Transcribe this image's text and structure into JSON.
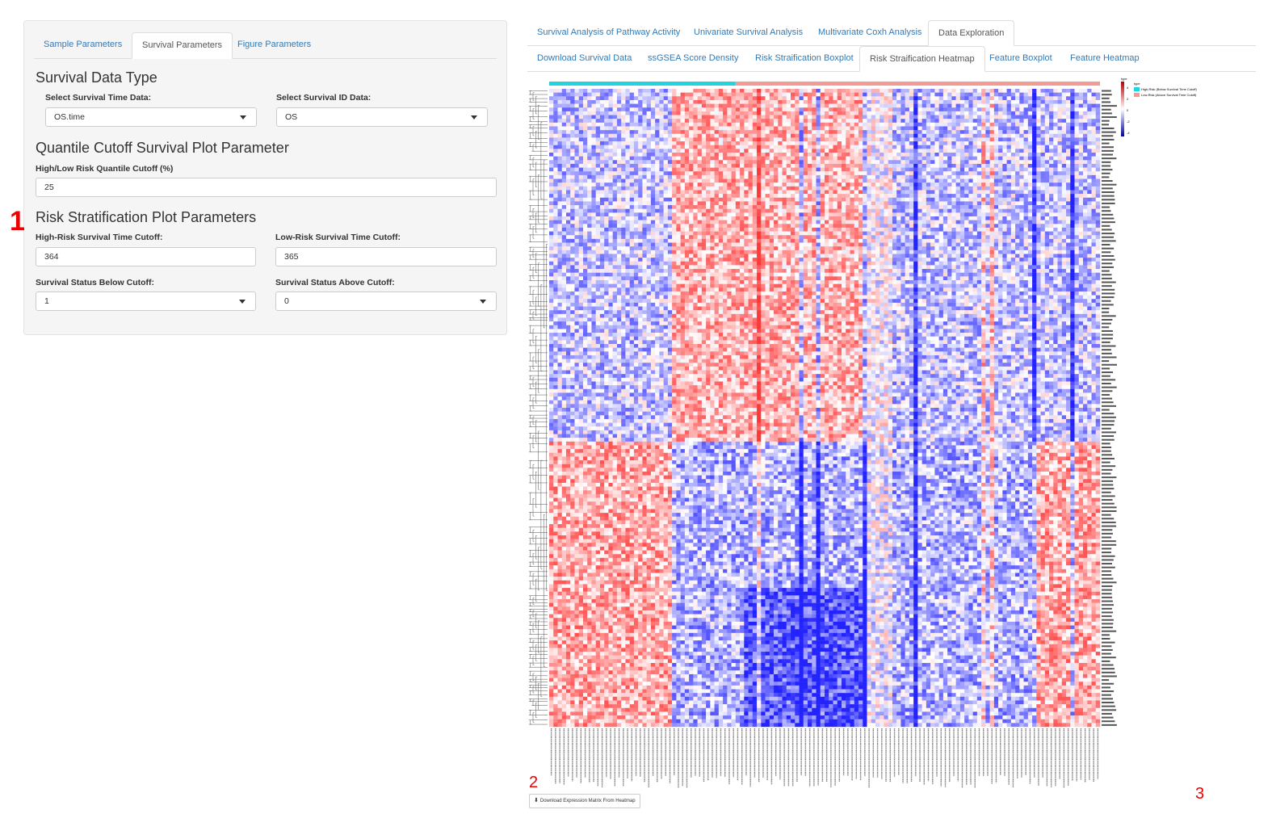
{
  "left_tabs": [
    "Sample Parameters",
    "Survival Parameters",
    "Figure Parameters"
  ],
  "sections": {
    "survival_data_type": "Survival Data Type",
    "quantile_cutoff": "Quantile Cutoff Survival Plot Parameter",
    "risk_stratification": "Risk Stratification Plot Parameters"
  },
  "fields": {
    "survival_time": {
      "label": "Select Survival Time Data:",
      "value": "OS.time"
    },
    "survival_id": {
      "label": "Select Survival ID Data:",
      "value": "OS"
    },
    "quantile_cutoff": {
      "label": "High/Low Risk Quantile Cutoff (%)",
      "value": "25"
    },
    "high_risk_cutoff": {
      "label": "High-Risk Survival Time Cutoff:",
      "value": "364"
    },
    "low_risk_cutoff": {
      "label": "Low-Risk Survival Time Cutoff:",
      "value": "365"
    },
    "status_below": {
      "label": "Survival Status Below Cutoff:",
      "value": "1"
    },
    "status_above": {
      "label": "Survival Status Above Cutoff:",
      "value": "0"
    }
  },
  "main_tabs": [
    "Survival Analysis of Pathway Activity",
    "Univariate Survival Analysis",
    "Multivariate Coxh Analysis",
    "Data Exploration"
  ],
  "sub_tabs": [
    "Download Survival Data",
    "ssGSEA Score Density",
    "Risk Straification Boxplot",
    "Risk Straification Heatmap",
    "Feature Boxplot",
    "Feature Heatmap"
  ],
  "heatmap": {
    "legend_title": "type",
    "legend_items": [
      {
        "label": "High-Risk (Below Survival Time Cutoff)",
        "color": "#22d3e0"
      },
      {
        "label": "Low-Risk (Above Survival Time Cutoff)",
        "color": "#f49a94"
      }
    ],
    "scale_ticks": [
      "4",
      "2",
      "0",
      "-2",
      "-4"
    ],
    "colors": {
      "high": "#e31a1c",
      "mid": "#ffffff",
      "low": "#1a1ad6"
    }
  },
  "download_button": "Download Expression Matrix From Heatmap",
  "markers": [
    "1",
    "2",
    "3"
  ]
}
